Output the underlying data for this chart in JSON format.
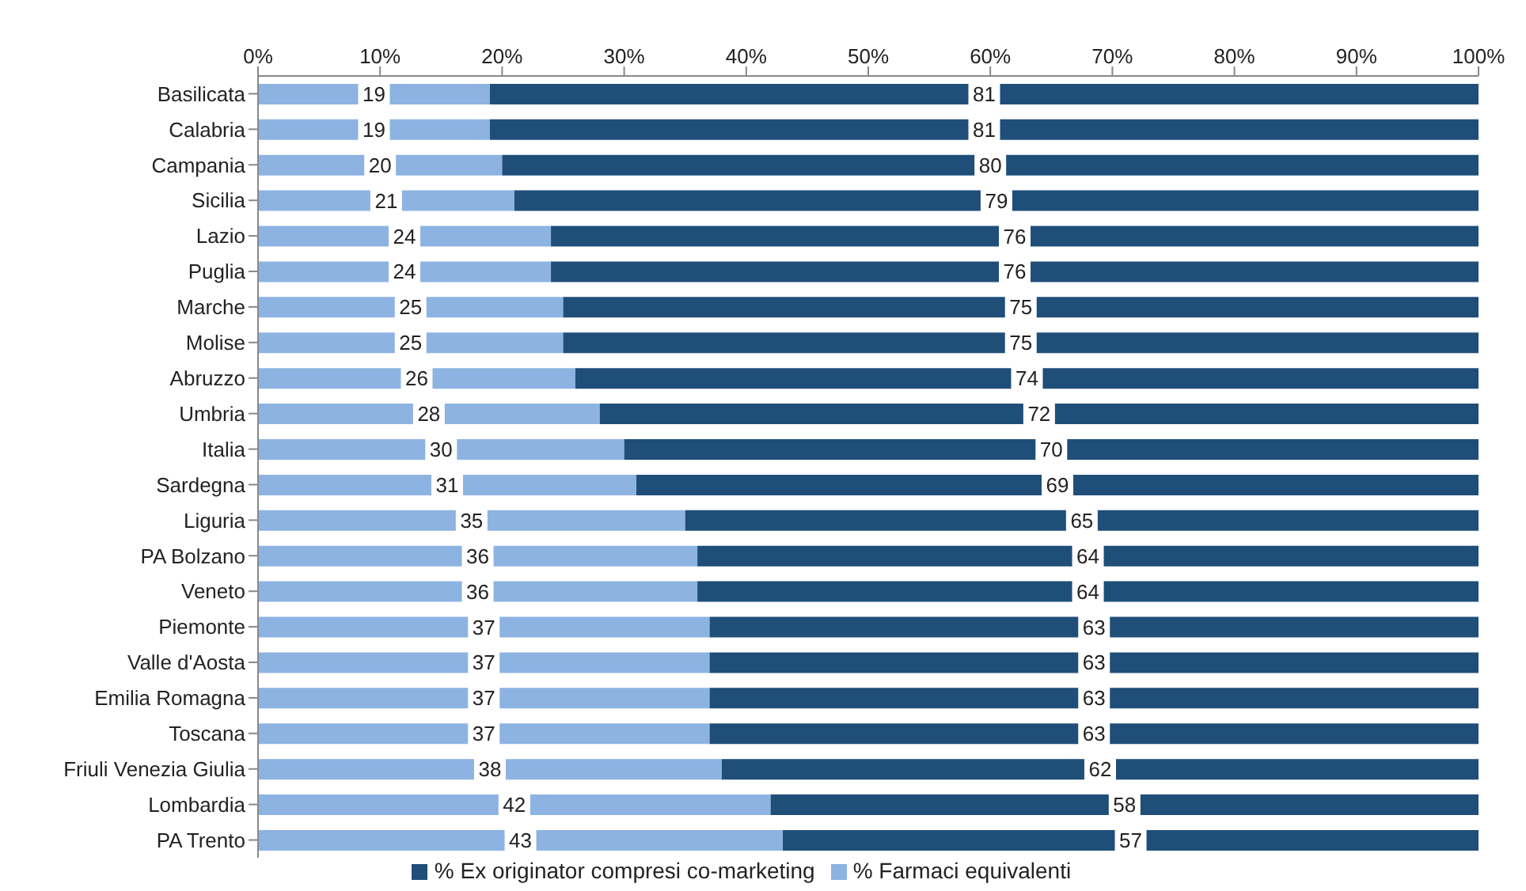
{
  "chart_data": {
    "type": "bar",
    "orientation": "horizontal",
    "stacked": true,
    "data_labels": true,
    "legend": "bottom",
    "grid": false,
    "categories": [
      "Basilicata",
      "Calabria",
      "Campania",
      "Sicilia",
      "Lazio",
      "Puglia",
      "Marche",
      "Molise",
      "Abruzzo",
      "Umbria",
      "Italia",
      "Sardegna",
      "Liguria",
      "PA Bolzano",
      "Veneto",
      "Piemonte",
      "Valle d'Aosta",
      "Emilia Romagna",
      "Toscana",
      "Friuli Venezia Giulia",
      "Lombardia",
      "PA Trento"
    ],
    "series": [
      {
        "name": "% Farmaci equivalenti",
        "color": "#8db3e2",
        "values": [
          19,
          19,
          20,
          21,
          24,
          24,
          25,
          25,
          26,
          28,
          30,
          31,
          35,
          36,
          36,
          37,
          37,
          37,
          37,
          38,
          42,
          43
        ]
      },
      {
        "name": "% Ex originator compresi co-marketing",
        "color": "#1f4e79",
        "values": [
          81,
          81,
          80,
          79,
          76,
          76,
          75,
          75,
          74,
          72,
          70,
          69,
          65,
          64,
          64,
          63,
          63,
          63,
          63,
          62,
          58,
          57
        ]
      }
    ],
    "xlim": [
      0,
      100
    ],
    "xticks": [
      {
        "value": 0,
        "label": "0%"
      },
      {
        "value": 10,
        "label": "10%"
      },
      {
        "value": 20,
        "label": "20%"
      },
      {
        "value": 30,
        "label": "30%"
      },
      {
        "value": 40,
        "label": "40%"
      },
      {
        "value": 50,
        "label": "50%"
      },
      {
        "value": 60,
        "label": "60%"
      },
      {
        "value": 70,
        "label": "70%"
      },
      {
        "value": 80,
        "label": "80%"
      },
      {
        "value": 90,
        "label": "90%"
      },
      {
        "value": 100,
        "label": "100%"
      }
    ]
  }
}
